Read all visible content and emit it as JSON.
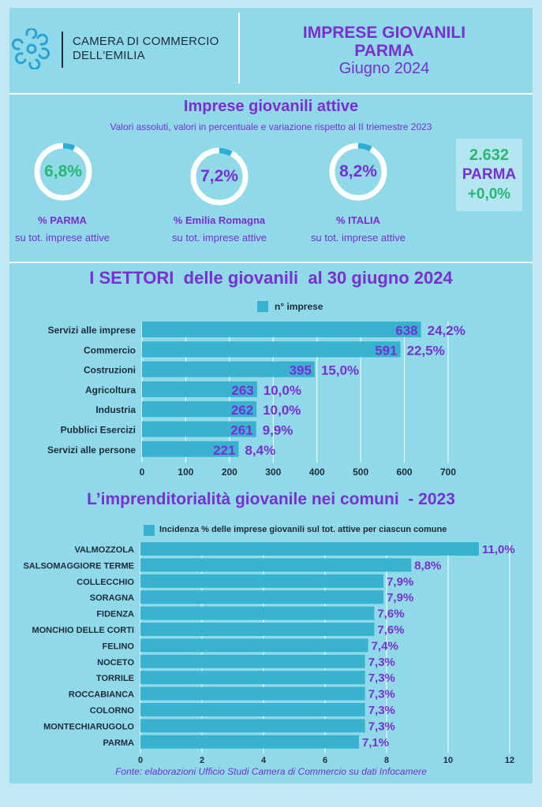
{
  "colors": {
    "page_bg": "#8fd9e8",
    "outer_bg": "#c4e8f3",
    "bar": "#39b2cf",
    "purple": "#7a2fd6",
    "green": "#2bb673",
    "axis_text": "#1f2a3a",
    "summary_box": "#b3e6f1"
  },
  "header": {
    "logo_icon": "chamber-logo-icon",
    "org_line1": "CAMERA DI COMMERCIO",
    "org_line2": "DELL'EMILIA",
    "title_line1": "IMPRESE GIOVANILI",
    "title_line2": "PARMA",
    "date": "Giugno 2024"
  },
  "active": {
    "title": "Imprese giovanili attive",
    "subtitle": "Valori assoluti, valori in percentuale e variazione rispetto al II triemestre 2023",
    "stats": [
      {
        "value": "6,8%",
        "label": "%  PARMA",
        "sub": "su tot. imprese attive",
        "color": "#2bb673"
      },
      {
        "value": "7,2%",
        "label": "%  Emilia Romagna",
        "sub": "su tot. imprese attive",
        "color": "#7a2fd6"
      },
      {
        "value": "8,2%",
        "label": "%  ITALIA",
        "sub": "su tot. imprese attive",
        "color": "#7a2fd6"
      }
    ],
    "summary": {
      "count": "2.632",
      "place": "PARMA",
      "change": "+0,0%"
    }
  },
  "chart_data": [
    {
      "type": "bar",
      "orientation": "horizontal",
      "title": "I SETTORI  delle giovanili  al 30 giugno 2024",
      "legend": "n° imprese",
      "categories": [
        "Servizi alle imprese",
        "Commercio",
        "Costruzioni",
        "Agricoltura",
        "Industria",
        "Pubblici Esercizi",
        "Servizi alle persone"
      ],
      "values": [
        638,
        591,
        395,
        263,
        262,
        261,
        221
      ],
      "value_labels": [
        "638",
        "591",
        "395",
        "263",
        "262",
        "261",
        "221"
      ],
      "percent_labels": [
        "24,2%",
        "22,5%",
        "15,0%",
        "10,0%",
        "10,0%",
        "9,9%",
        "8,4%"
      ],
      "xlim": [
        0,
        700
      ],
      "xticks": [
        "0",
        "100",
        "200",
        "300",
        "400",
        "500",
        "600",
        "700"
      ],
      "grid": true
    },
    {
      "type": "bar",
      "orientation": "horizontal",
      "title": "L’imprenditorialità giovanile nei comuni  - 2023",
      "legend": "Incidenza % delle imprese giovanili sul tot. attive per ciascun comune",
      "categories": [
        "VALMOZZOLA",
        "SALSOMAGGIORE TERME",
        "COLLECCHIO",
        "SORAGNA",
        "FIDENZA",
        "MONCHIO DELLE CORTI",
        "FELINO",
        "NOCETO",
        "TORRILE",
        "ROCCABIANCA",
        "COLORNO",
        "MONTECHIARUGOLO",
        "PARMA"
      ],
      "values": [
        11.0,
        8.8,
        7.9,
        7.9,
        7.6,
        7.6,
        7.4,
        7.3,
        7.3,
        7.3,
        7.3,
        7.3,
        7.1
      ],
      "value_labels": [
        "11,0%",
        "8,8%",
        "7,9%",
        "7,9%",
        "7,6%",
        "7,6%",
        "7,4%",
        "7,3%",
        "7,3%",
        "7,3%",
        "7,3%",
        "7,3%",
        "7,1%"
      ],
      "xlim": [
        0,
        12
      ],
      "xticks": [
        "0",
        "2",
        "4",
        "6",
        "8",
        "10",
        "12"
      ],
      "grid": true
    }
  ],
  "footer": {
    "source": "Fonte: elaborazioni Ufficio Studi Camera di Commercio su dati Infocamere"
  }
}
